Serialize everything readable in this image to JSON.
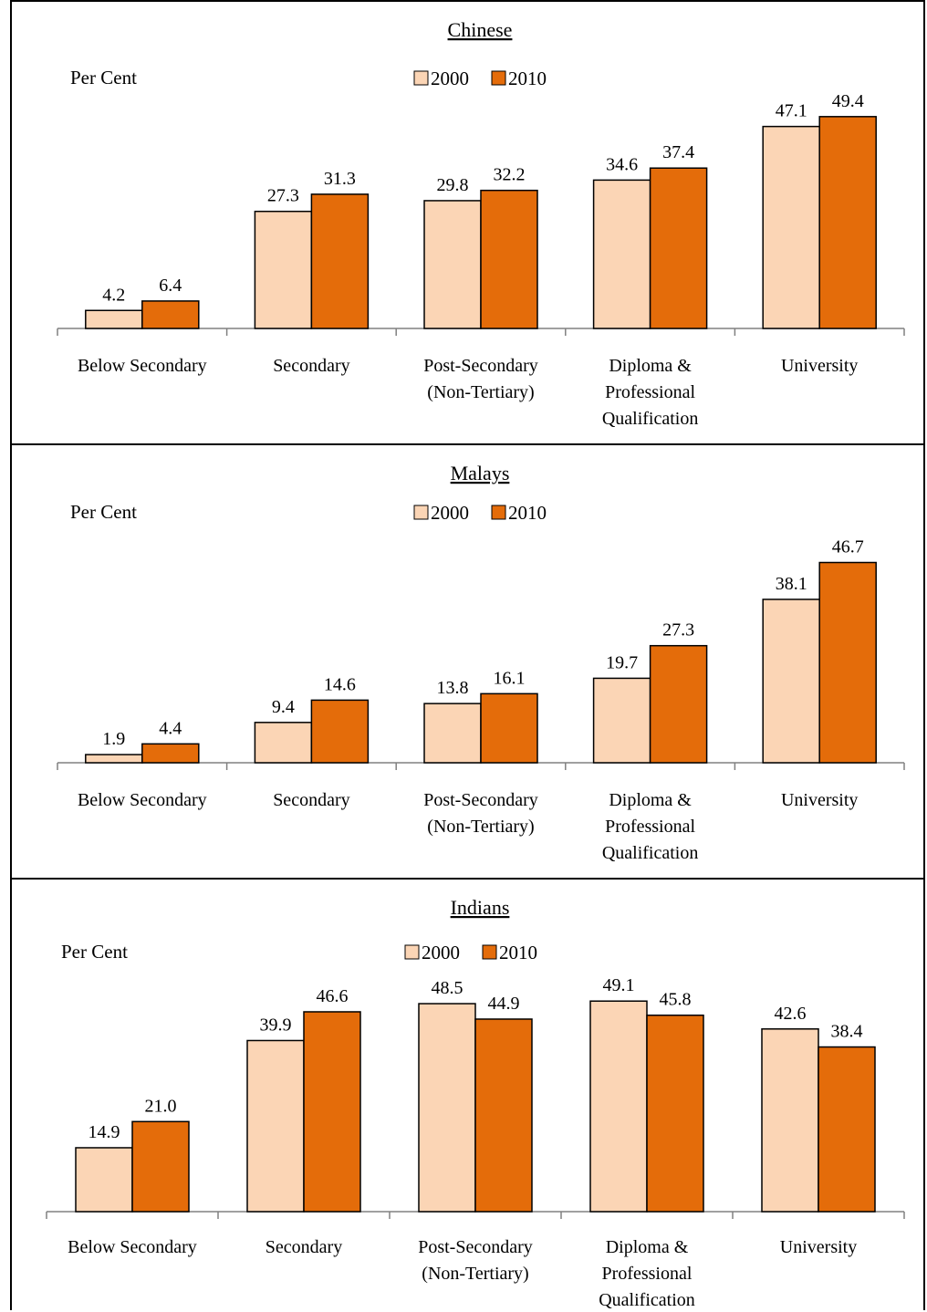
{
  "chart_data": [
    {
      "type": "bar",
      "title": "Chinese",
      "ylabel": "Per Cent",
      "categories": [
        [
          "Below Secondary"
        ],
        [
          "Secondary"
        ],
        [
          "Post-Secondary",
          "(Non-Tertiary)"
        ],
        [
          "Diploma &",
          "Professional",
          "Qualification"
        ],
        [
          "University"
        ]
      ],
      "series": [
        {
          "name": "2000",
          "values": [
            4.2,
            27.3,
            29.8,
            34.6,
            47.1
          ],
          "labels": [
            "4.2",
            "27.3",
            "29.8",
            "34.6",
            "47.1"
          ],
          "color": "#FBD5B5"
        },
        {
          "name": "2010",
          "values": [
            6.4,
            31.3,
            32.2,
            37.4,
            49.4
          ],
          "labels": [
            "6.4",
            "31.3",
            "32.2",
            "37.4",
            "49.4"
          ],
          "color": "#E46C0A"
        }
      ],
      "ylim": [
        0,
        55
      ],
      "grid": false,
      "legend": "top-center"
    },
    {
      "type": "bar",
      "title": "Malays",
      "ylabel": "Per Cent",
      "categories": [
        [
          "Below Secondary"
        ],
        [
          "Secondary"
        ],
        [
          "Post-Secondary",
          "(Non-Tertiary)"
        ],
        [
          "Diploma &",
          "Professional",
          "Qualification"
        ],
        [
          "University"
        ]
      ],
      "series": [
        {
          "name": "2000",
          "values": [
            1.9,
            9.4,
            13.8,
            19.7,
            38.1
          ],
          "labels": [
            "1.9",
            "9.4",
            "13.8",
            "19.7",
            "38.1"
          ],
          "color": "#FBD5B5"
        },
        {
          "name": "2010",
          "values": [
            4.4,
            14.6,
            16.1,
            27.3,
            46.7
          ],
          "labels": [
            "4.4",
            "14.6",
            "16.1",
            "27.3",
            "46.7"
          ],
          "color": "#E46C0A"
        }
      ],
      "ylim": [
        0,
        55
      ],
      "grid": false,
      "legend": "top-center"
    },
    {
      "type": "bar",
      "title": "Indians",
      "ylabel": "Per Cent",
      "categories": [
        [
          "Below Secondary"
        ],
        [
          "Secondary"
        ],
        [
          "Post-Secondary",
          "(Non-Tertiary)"
        ],
        [
          "Diploma &",
          "Professional",
          "Qualification"
        ],
        [
          "University"
        ]
      ],
      "series": [
        {
          "name": "2000",
          "values": [
            14.9,
            39.9,
            48.5,
            49.1,
            42.6
          ],
          "labels": [
            "14.9",
            "39.9",
            "48.5",
            "49.1",
            "42.6"
          ],
          "color": "#FBD5B5"
        },
        {
          "name": "2010",
          "values": [
            21.0,
            46.6,
            44.9,
            45.8,
            38.4
          ],
          "labels": [
            "21.0",
            "46.6",
            "44.9",
            "45.8",
            "38.4"
          ],
          "color": "#E46C0A"
        }
      ],
      "ylim": [
        0,
        55
      ],
      "grid": false,
      "legend": "top-center"
    }
  ]
}
